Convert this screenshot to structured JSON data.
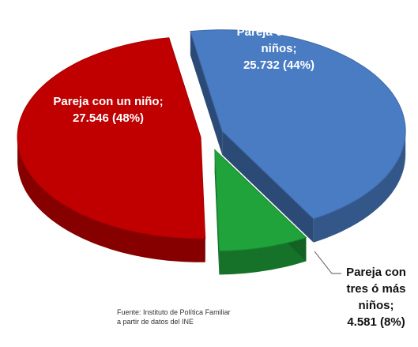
{
  "chart_data": {
    "type": "pie",
    "categories": [
      "Pareja con un niño;",
      "Pareja con dos niños;",
      "Pareja con tres ó más niños;"
    ],
    "values": [
      27546,
      25732,
      4581
    ],
    "value_labels": [
      "27.546 (48%)",
      "25.732 (44%)",
      "4.581 (8%)"
    ],
    "colors": [
      "#c00000",
      "#4a7cc4",
      "#1fa33a"
    ],
    "source": [
      "Fuente: Instituto de Política Familiar",
      "a partir de datos del INE"
    ]
  }
}
